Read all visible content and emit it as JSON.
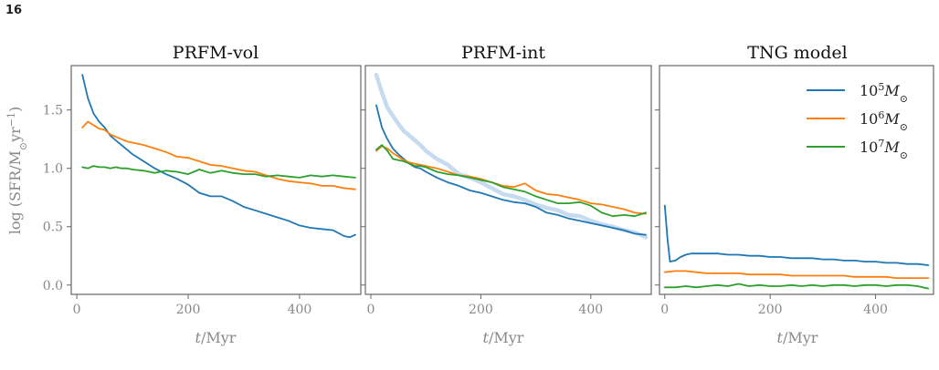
{
  "page_number": "16",
  "colors": {
    "1e5": "#1f77b4",
    "1e6": "#ff7f0e",
    "1e7": "#2ca02c",
    "reference": "#c6dbef",
    "frame": "#666666",
    "tick_text": "#888888"
  },
  "chart_data": [
    {
      "type": "line",
      "title": "PRFM-vol",
      "xlabel": "t/Myr",
      "ylabel": "log (SFR/M⊙yr⁻¹)",
      "xlim": [
        -10,
        510
      ],
      "ylim": [
        -0.08,
        1.88
      ],
      "xticks": [
        0,
        200,
        400
      ],
      "yticks": [
        0.0,
        0.5,
        1.0,
        1.5
      ],
      "ytick_labels": [
        "0.0",
        "0.5",
        "1.0",
        "1.5"
      ],
      "grid": false,
      "series": [
        {
          "key": "1e5",
          "x": [
            10,
            20,
            30,
            40,
            50,
            60,
            70,
            80,
            90,
            100,
            120,
            140,
            160,
            180,
            200,
            220,
            240,
            260,
            280,
            300,
            320,
            340,
            360,
            380,
            400,
            420,
            440,
            460,
            480,
            490,
            500
          ],
          "y": [
            1.8,
            1.6,
            1.47,
            1.4,
            1.35,
            1.28,
            1.24,
            1.2,
            1.16,
            1.12,
            1.06,
            1.0,
            0.95,
            0.91,
            0.86,
            0.79,
            0.76,
            0.76,
            0.72,
            0.67,
            0.64,
            0.61,
            0.58,
            0.55,
            0.51,
            0.49,
            0.48,
            0.47,
            0.42,
            0.41,
            0.43
          ]
        },
        {
          "key": "1e6",
          "x": [
            10,
            20,
            30,
            40,
            50,
            60,
            70,
            80,
            90,
            100,
            120,
            140,
            160,
            180,
            200,
            220,
            240,
            260,
            280,
            300,
            320,
            340,
            360,
            380,
            400,
            420,
            440,
            460,
            480,
            500
          ],
          "y": [
            1.35,
            1.4,
            1.37,
            1.34,
            1.33,
            1.29,
            1.27,
            1.25,
            1.23,
            1.22,
            1.2,
            1.17,
            1.14,
            1.1,
            1.09,
            1.06,
            1.03,
            1.02,
            1.0,
            0.98,
            0.97,
            0.94,
            0.91,
            0.89,
            0.88,
            0.87,
            0.85,
            0.85,
            0.83,
            0.82
          ]
        },
        {
          "key": "1e7",
          "x": [
            10,
            20,
            30,
            40,
            50,
            60,
            70,
            80,
            90,
            100,
            120,
            140,
            160,
            180,
            200,
            220,
            240,
            260,
            280,
            300,
            320,
            340,
            360,
            380,
            400,
            420,
            440,
            460,
            480,
            500
          ],
          "y": [
            1.01,
            1.0,
            1.02,
            1.01,
            1.01,
            1.0,
            1.01,
            1.0,
            1.0,
            0.99,
            0.98,
            0.96,
            0.98,
            0.97,
            0.95,
            0.99,
            0.96,
            0.98,
            0.96,
            0.95,
            0.95,
            0.93,
            0.94,
            0.93,
            0.92,
            0.94,
            0.93,
            0.94,
            0.93,
            0.92
          ]
        }
      ]
    },
    {
      "type": "line",
      "title": "PRFM-int",
      "xlabel": "t/Myr",
      "xlim": [
        -10,
        510
      ],
      "ylim": [
        -0.08,
        1.88
      ],
      "xticks": [
        0,
        200,
        400
      ],
      "yticks": [
        0.0,
        0.5,
        1.0,
        1.5
      ],
      "grid": false,
      "series": [
        {
          "key": "reference",
          "x": [
            10,
            20,
            30,
            40,
            50,
            60,
            70,
            80,
            90,
            100,
            120,
            140,
            160,
            180,
            200,
            220,
            240,
            260,
            280,
            300,
            320,
            340,
            360,
            380,
            400,
            420,
            440,
            460,
            480,
            500
          ],
          "y": [
            1.8,
            1.65,
            1.52,
            1.45,
            1.38,
            1.32,
            1.28,
            1.24,
            1.2,
            1.15,
            1.08,
            1.03,
            0.95,
            0.92,
            0.88,
            0.83,
            0.78,
            0.76,
            0.73,
            0.69,
            0.66,
            0.64,
            0.6,
            0.59,
            0.55,
            0.52,
            0.5,
            0.47,
            0.45,
            0.41
          ]
        },
        {
          "key": "1e5",
          "x": [
            10,
            20,
            30,
            40,
            50,
            60,
            70,
            80,
            90,
            100,
            120,
            140,
            160,
            180,
            200,
            220,
            240,
            260,
            280,
            300,
            320,
            340,
            360,
            380,
            400,
            420,
            440,
            460,
            480,
            500
          ],
          "y": [
            1.54,
            1.35,
            1.25,
            1.17,
            1.12,
            1.08,
            1.04,
            1.01,
            1.0,
            0.97,
            0.92,
            0.88,
            0.85,
            0.81,
            0.79,
            0.76,
            0.73,
            0.71,
            0.7,
            0.67,
            0.62,
            0.6,
            0.57,
            0.55,
            0.53,
            0.51,
            0.49,
            0.47,
            0.44,
            0.43
          ]
        },
        {
          "key": "1e6",
          "x": [
            10,
            20,
            30,
            40,
            50,
            60,
            70,
            80,
            90,
            100,
            120,
            140,
            160,
            180,
            200,
            220,
            240,
            260,
            280,
            300,
            320,
            340,
            360,
            380,
            400,
            420,
            440,
            460,
            480,
            500
          ],
          "y": [
            1.15,
            1.19,
            1.17,
            1.13,
            1.1,
            1.07,
            1.05,
            1.04,
            1.03,
            1.02,
            1.0,
            0.97,
            0.94,
            0.93,
            0.91,
            0.88,
            0.85,
            0.84,
            0.87,
            0.81,
            0.78,
            0.77,
            0.75,
            0.73,
            0.7,
            0.69,
            0.67,
            0.65,
            0.62,
            0.61
          ]
        },
        {
          "key": "1e7",
          "x": [
            10,
            20,
            30,
            40,
            50,
            60,
            70,
            80,
            90,
            100,
            120,
            140,
            160,
            180,
            200,
            220,
            240,
            260,
            280,
            300,
            320,
            340,
            360,
            380,
            400,
            420,
            440,
            460,
            480,
            500
          ],
          "y": [
            1.16,
            1.2,
            1.15,
            1.08,
            1.07,
            1.06,
            1.04,
            1.02,
            1.02,
            1.01,
            0.97,
            0.95,
            0.94,
            0.92,
            0.9,
            0.88,
            0.84,
            0.82,
            0.8,
            0.76,
            0.73,
            0.7,
            0.7,
            0.71,
            0.68,
            0.62,
            0.59,
            0.6,
            0.59,
            0.62
          ]
        }
      ]
    },
    {
      "type": "line",
      "title": "TNG model",
      "xlabel": "t/Myr",
      "xlim": [
        -10,
        510
      ],
      "ylim": [
        -0.08,
        1.88
      ],
      "xticks": [
        0,
        200,
        400
      ],
      "yticks": [
        0.0,
        0.5,
        1.0,
        1.5
      ],
      "grid": false,
      "legend": {
        "position": "top-right",
        "entries": [
          {
            "key": "1e5",
            "base": "10",
            "exp": "5",
            "sym": "M",
            "sub": "⊙"
          },
          {
            "key": "1e6",
            "base": "10",
            "exp": "6",
            "sym": "M",
            "sub": "⊙"
          },
          {
            "key": "1e7",
            "base": "10",
            "exp": "7",
            "sym": "M",
            "sub": "⊙"
          }
        ]
      },
      "series": [
        {
          "key": "1e5",
          "x": [
            0,
            5,
            10,
            20,
            30,
            40,
            50,
            60,
            80,
            100,
            120,
            140,
            160,
            180,
            200,
            220,
            240,
            260,
            280,
            300,
            320,
            340,
            360,
            380,
            400,
            420,
            440,
            460,
            480,
            500
          ],
          "y": [
            0.68,
            0.4,
            0.2,
            0.21,
            0.24,
            0.26,
            0.27,
            0.27,
            0.27,
            0.27,
            0.26,
            0.26,
            0.25,
            0.25,
            0.24,
            0.24,
            0.23,
            0.23,
            0.23,
            0.22,
            0.22,
            0.21,
            0.21,
            0.2,
            0.2,
            0.19,
            0.19,
            0.18,
            0.18,
            0.17
          ]
        },
        {
          "key": "1e6",
          "x": [
            0,
            20,
            40,
            60,
            80,
            100,
            120,
            140,
            160,
            180,
            200,
            220,
            240,
            260,
            280,
            300,
            320,
            340,
            360,
            380,
            400,
            420,
            440,
            460,
            480,
            500
          ],
          "y": [
            0.11,
            0.12,
            0.12,
            0.11,
            0.1,
            0.1,
            0.1,
            0.1,
            0.09,
            0.09,
            0.09,
            0.09,
            0.08,
            0.08,
            0.08,
            0.08,
            0.08,
            0.08,
            0.07,
            0.07,
            0.07,
            0.07,
            0.06,
            0.06,
            0.06,
            0.06
          ]
        },
        {
          "key": "1e7",
          "x": [
            0,
            20,
            40,
            60,
            80,
            100,
            120,
            140,
            160,
            180,
            200,
            220,
            240,
            260,
            280,
            300,
            320,
            340,
            360,
            380,
            400,
            420,
            440,
            460,
            480,
            500
          ],
          "y": [
            -0.02,
            -0.02,
            -0.01,
            -0.02,
            -0.01,
            0.0,
            -0.01,
            0.01,
            -0.01,
            0.0,
            -0.01,
            -0.01,
            0.0,
            -0.01,
            0.0,
            -0.01,
            0.0,
            0.0,
            -0.01,
            0.0,
            0.0,
            -0.01,
            0.0,
            0.0,
            -0.01,
            -0.03
          ]
        }
      ]
    }
  ]
}
